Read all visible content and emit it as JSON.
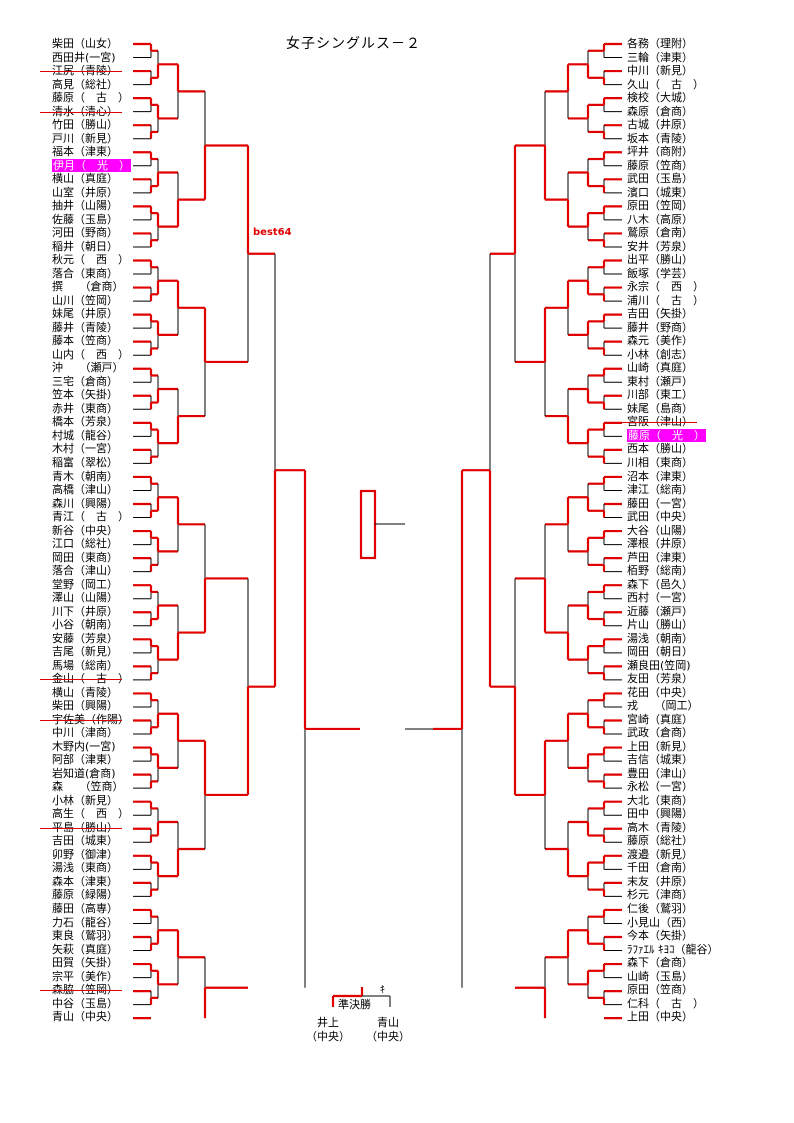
{
  "title": "女子シングルス－２",
  "best64_label": "best64",
  "semifinal_label": "準決勝",
  "ki_mark": "ｷ",
  "finalists": {
    "left": {
      "name": "井上",
      "school": "（中央）"
    },
    "right": {
      "name": "青山",
      "school": "（中央）"
    }
  },
  "colors": {
    "bracket_win": "#e00000",
    "bracket_line": "#000000",
    "highlight": "#ff00ff"
  },
  "left_players": [
    {
      "label": "柴田（山女）"
    },
    {
      "label": "西田井(一宮)"
    },
    {
      "label": "江尻（青陵）",
      "struck": true
    },
    {
      "label": "高見（総社）"
    },
    {
      "label": "藤原（　古　）"
    },
    {
      "label": "清水（清心）",
      "struck": true
    },
    {
      "label": "竹田（勝山）"
    },
    {
      "label": "戸川（新見）"
    },
    {
      "label": "福本（津東）"
    },
    {
      "label": "伊月（　光　）",
      "highlight": true
    },
    {
      "label": "横山（真庭）"
    },
    {
      "label": "山室（井原）"
    },
    {
      "label": "抽井（山陽）"
    },
    {
      "label": "佐藤（玉島）"
    },
    {
      "label": "河田（野商）"
    },
    {
      "label": "稲井（朝日）"
    },
    {
      "label": "秋元（　西　）"
    },
    {
      "label": "落合（東商）"
    },
    {
      "label": "撰　　（倉商）"
    },
    {
      "label": "山川（笠岡）"
    },
    {
      "label": "妹尾（井原）"
    },
    {
      "label": "藤井（青陵）"
    },
    {
      "label": "藤本（笠商）"
    },
    {
      "label": "山内（　西　）"
    },
    {
      "label": "沖　　（瀬戸）"
    },
    {
      "label": "三宅（倉商）"
    },
    {
      "label": "笠本（矢掛）"
    },
    {
      "label": "赤井（東商）"
    },
    {
      "label": "橋本（芳泉）"
    },
    {
      "label": "村城（龍谷）"
    },
    {
      "label": "木村（一宮）"
    },
    {
      "label": "稲富（翠松）"
    },
    {
      "label": "青木（朝南）"
    },
    {
      "label": "高橋（津山）"
    },
    {
      "label": "森川（興陽）"
    },
    {
      "label": "青江（　古　）"
    },
    {
      "label": "新谷（中央）"
    },
    {
      "label": "江口（総社）"
    },
    {
      "label": "岡田（東商）"
    },
    {
      "label": "落合（津山）"
    },
    {
      "label": "堂野（岡工）"
    },
    {
      "label": "澤山（山陽）"
    },
    {
      "label": "川下（井原）"
    },
    {
      "label": "小谷（朝南）"
    },
    {
      "label": "安藤（芳泉）"
    },
    {
      "label": "吉尾（新見）"
    },
    {
      "label": "馬場（総南）"
    },
    {
      "label": "金山（　古　）",
      "struck": true
    },
    {
      "label": "横山（青陵）"
    },
    {
      "label": "柴田（興陽）"
    },
    {
      "label": "宇佐美（作陽）",
      "struck": true
    },
    {
      "label": "中川（津商）"
    },
    {
      "label": "木野内(一宮)"
    },
    {
      "label": "阿部（津東）"
    },
    {
      "label": "岩知道(倉商)"
    },
    {
      "label": "森　　（笠商）"
    },
    {
      "label": "小林（新見）"
    },
    {
      "label": "高生（　西　）"
    },
    {
      "label": "平島（勝山）",
      "struck": true
    },
    {
      "label": "吉田（城東）"
    },
    {
      "label": "卯野（御津）"
    },
    {
      "label": "湯浅（東商）"
    },
    {
      "label": "森本（津東）"
    },
    {
      "label": "藤原（緑陽）"
    },
    {
      "label": "藤田（高専）"
    },
    {
      "label": "力石（龍谷）"
    },
    {
      "label": "東良（鷲羽）"
    },
    {
      "label": "矢萩（真庭）"
    },
    {
      "label": "田賀（矢掛）"
    },
    {
      "label": "宗平（美作）"
    },
    {
      "label": "森脇（笠岡）",
      "struck": true
    },
    {
      "label": "中谷（玉島）"
    },
    {
      "label": "青山（中央）"
    }
  ],
  "right_players": [
    {
      "label": "各務（理附）"
    },
    {
      "label": "三輪（津東）"
    },
    {
      "label": "中川（新見）"
    },
    {
      "label": "久山（　古　）"
    },
    {
      "label": "検校（大城）"
    },
    {
      "label": "森原（倉商）"
    },
    {
      "label": "古城（井原）"
    },
    {
      "label": "坂本（青陵）"
    },
    {
      "label": "坪井（商附）"
    },
    {
      "label": "藤原（笠商）"
    },
    {
      "label": "武田（玉島）"
    },
    {
      "label": "濱口（城東）"
    },
    {
      "label": "原田（笠岡）"
    },
    {
      "label": "八木（高原）"
    },
    {
      "label": "鷲原（倉南）"
    },
    {
      "label": "安井（芳泉）"
    },
    {
      "label": "出平（勝山）"
    },
    {
      "label": "飯塚（学芸）"
    },
    {
      "label": "永宗（　西　）"
    },
    {
      "label": "浦川（　古　）"
    },
    {
      "label": "吉田（矢掛）"
    },
    {
      "label": "藤井（野商）"
    },
    {
      "label": "森元（美作）"
    },
    {
      "label": "小林（創志）"
    },
    {
      "label": "山崎（真庭）"
    },
    {
      "label": "東村（瀬戸）"
    },
    {
      "label": "川部（東工）"
    },
    {
      "label": "妹尾（島商）"
    },
    {
      "label": "宮阪（津山）",
      "struck": true
    },
    {
      "label": "藤原（　光　）",
      "highlight": true
    },
    {
      "label": "西本（勝山）"
    },
    {
      "label": "川相（東商）"
    },
    {
      "label": "沼本（津東）"
    },
    {
      "label": "津江（総南）"
    },
    {
      "label": "藤田（一宮）"
    },
    {
      "label": "武田（中央）"
    },
    {
      "label": "大谷（山陽）"
    },
    {
      "label": "澤根（井原）"
    },
    {
      "label": "芦田（津東）"
    },
    {
      "label": "栢野（総南）"
    },
    {
      "label": "森下（邑久）"
    },
    {
      "label": "西村（一宮）"
    },
    {
      "label": "近藤（瀬戸）"
    },
    {
      "label": "片山（勝山）"
    },
    {
      "label": "湯浅（朝南）"
    },
    {
      "label": "岡田（朝日）"
    },
    {
      "label": "瀬良田(笠岡)"
    },
    {
      "label": "友田（芳泉）"
    },
    {
      "label": "花田（中央）"
    },
    {
      "label": "戎　　（岡工）"
    },
    {
      "label": "宮崎（真庭）"
    },
    {
      "label": "武政（倉商）"
    },
    {
      "label": "上田（新見）"
    },
    {
      "label": "吉信（城東）"
    },
    {
      "label": "豊田（津山）"
    },
    {
      "label": "永松（一宮）"
    },
    {
      "label": "大北（東商）"
    },
    {
      "label": "田中（興陽）"
    },
    {
      "label": "高木（青陵）"
    },
    {
      "label": "藤原（総社）"
    },
    {
      "label": "渡邉（新見）"
    },
    {
      "label": "千田（倉南）"
    },
    {
      "label": "末友（井原）"
    },
    {
      "label": "杉元（津商）"
    },
    {
      "label": "仁後（鷲羽）"
    },
    {
      "label": "小見山（西）"
    },
    {
      "label": "今本（矢掛）"
    },
    {
      "label": "ﾗﾌｧｴﾙ ｷﾖｺ（龍谷）"
    },
    {
      "label": "森下（倉商）"
    },
    {
      "label": "山崎（玉島）"
    },
    {
      "label": "原田（笠商）"
    },
    {
      "label": "仁科（　古　）"
    },
    {
      "label": "上田（中央）"
    }
  ]
}
